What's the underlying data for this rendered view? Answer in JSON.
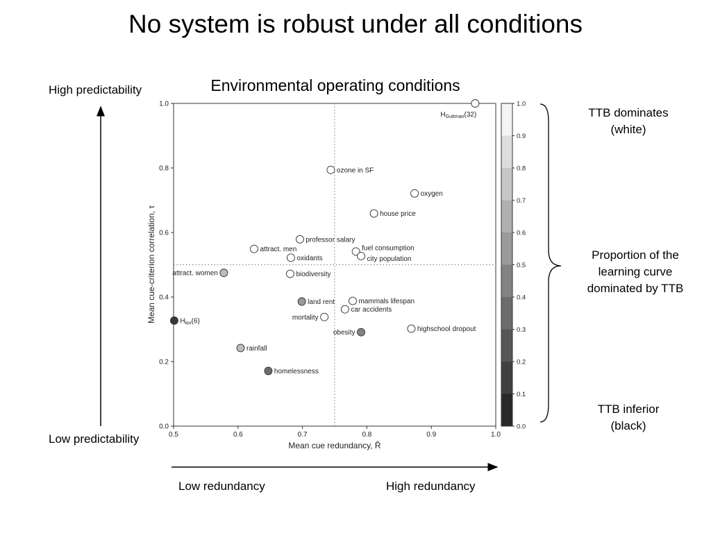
{
  "slide_title": "No system is robust under all conditions",
  "left_axis": {
    "top_label": "High predictability",
    "bottom_label": "Low predictability"
  },
  "bottom_axis": {
    "left_label": "Low redundancy",
    "right_label": "High redundancy"
  },
  "brace_annotations": {
    "top": [
      "TTB dominates",
      "(white)"
    ],
    "middle": [
      "Proportion of the",
      "learning curve",
      "dominated by TTB"
    ],
    "bottom": [
      "TTB inferior",
      "(black)"
    ]
  },
  "chart_data": {
    "type": "scatter",
    "title": "Environmental operating conditions",
    "xlabel": "Mean cue redundancy, R̄",
    "ylabel": "Mean cue-criterion correlation, τ",
    "xlim": [
      0.5,
      1.0
    ],
    "ylim": [
      0.0,
      1.0
    ],
    "xticks": [
      "0.5",
      "0.6",
      "0.7",
      "0.8",
      "0.9",
      "1.0"
    ],
    "yticks": [
      "0.0",
      "0.2",
      "0.4",
      "0.6",
      "0.8",
      "1.0"
    ],
    "reference_lines": {
      "x": 0.75,
      "y": 0.5
    },
    "colorbar": {
      "range": [
        0.0,
        1.0
      ],
      "ticks": [
        "0.0",
        "0.1",
        "0.2",
        "0.3",
        "0.4",
        "0.5",
        "0.6",
        "0.7",
        "0.8",
        "0.9",
        "1.0"
      ]
    },
    "points": [
      {
        "label": "H",
        "sub": "Guttman",
        "suffix": "(32)",
        "x": 0.968,
        "y": 1.0,
        "value": 1.0,
        "label_pos": "below"
      },
      {
        "label": "ozone in SF",
        "x": 0.744,
        "y": 0.794,
        "value": 1.0,
        "label_pos": "right"
      },
      {
        "label": "oxygen",
        "x": 0.874,
        "y": 0.721,
        "value": 1.0,
        "label_pos": "right"
      },
      {
        "label": "house price",
        "x": 0.811,
        "y": 0.659,
        "value": 1.0,
        "label_pos": "right"
      },
      {
        "label": "professor salary",
        "x": 0.696,
        "y": 0.579,
        "value": 1.0,
        "label_pos": "right"
      },
      {
        "label": "attract. men",
        "x": 0.625,
        "y": 0.549,
        "value": 1.0,
        "label_pos": "right"
      },
      {
        "label": "fuel consumption",
        "x": 0.783,
        "y": 0.541,
        "value": 1.0,
        "label_pos": "right_up"
      },
      {
        "label": "oxidants",
        "x": 0.682,
        "y": 0.522,
        "value": 1.0,
        "label_pos": "right"
      },
      {
        "label": "city population",
        "x": 0.791,
        "y": 0.527,
        "value": 1.0,
        "label_pos": "right_down"
      },
      {
        "label": "attract. women",
        "x": 0.578,
        "y": 0.475,
        "value": 0.7,
        "label_pos": "left"
      },
      {
        "label": "biodiversity",
        "x": 0.681,
        "y": 0.472,
        "value": 1.0,
        "label_pos": "right"
      },
      {
        "label": "land rent",
        "x": 0.699,
        "y": 0.386,
        "value": 0.55,
        "label_pos": "right"
      },
      {
        "label": "mammals lifespan",
        "x": 0.778,
        "y": 0.388,
        "value": 1.0,
        "label_pos": "right"
      },
      {
        "label": "car accidents",
        "x": 0.766,
        "y": 0.362,
        "value": 1.0,
        "label_pos": "right"
      },
      {
        "label": "mortality",
        "x": 0.734,
        "y": 0.338,
        "value": 1.0,
        "label_pos": "left"
      },
      {
        "label": "H",
        "sub": "lex",
        "suffix": "(6)",
        "x": 0.501,
        "y": 0.327,
        "value": 0.12,
        "label_pos": "right"
      },
      {
        "label": "highschool dropout",
        "x": 0.869,
        "y": 0.302,
        "value": 1.0,
        "label_pos": "right"
      },
      {
        "label": "obesity",
        "x": 0.791,
        "y": 0.291,
        "value": 0.45,
        "label_pos": "left"
      },
      {
        "label": "rainfall",
        "x": 0.604,
        "y": 0.242,
        "value": 0.7,
        "label_pos": "right"
      },
      {
        "label": "homelessness",
        "x": 0.647,
        "y": 0.171,
        "value": 0.35,
        "label_pos": "right"
      }
    ]
  }
}
